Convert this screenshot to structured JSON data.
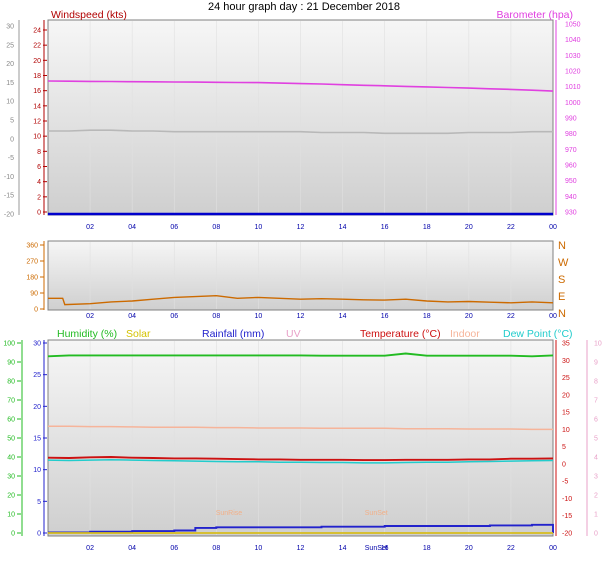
{
  "page_title": "24 hour graph day : 21 December 2018",
  "x_ticks": [
    "02",
    "04",
    "06",
    "08",
    "10",
    "12",
    "14",
    "16",
    "18",
    "20",
    "22",
    "00"
  ],
  "chart_data": [
    {
      "type": "line",
      "panel": "wind-pressure",
      "x": [
        0,
        1,
        2,
        3,
        4,
        5,
        6,
        7,
        8,
        9,
        10,
        11,
        12,
        13,
        14,
        15,
        16,
        17,
        18,
        19,
        20,
        21,
        22,
        23,
        24
      ],
      "left_axis": {
        "label": "Windspeed (kts)",
        "ticks": [
          "24",
          "22",
          "20",
          "18",
          "16",
          "14",
          "12",
          "10",
          "8",
          "6",
          "4",
          "2",
          "0"
        ],
        "range": [
          0,
          25
        ]
      },
      "right_axis": {
        "label": "Barometer (hpa)",
        "ticks": [
          "1050",
          "1040",
          "1030",
          "1020",
          "1010",
          "1000",
          "990",
          "980",
          "970",
          "960",
          "950",
          "940",
          "930"
        ],
        "range": [
          928,
          1051
        ]
      },
      "outer_left_ticks": [
        "30",
        "25",
        "20",
        "15",
        "10",
        "5",
        "0",
        "-5",
        "-10",
        "-15",
        "-20"
      ],
      "series": [
        {
          "name": "Barometer (hpa)",
          "axis": "right",
          "color": "#e040e0",
          "values": [
            1012.3,
            1012.2,
            1012.1,
            1012.0,
            1011.9,
            1011.8,
            1011.7,
            1011.6,
            1011.5,
            1011.4,
            1011.3,
            1011.0,
            1010.7,
            1010.4,
            1010.0,
            1009.6,
            1009.3,
            1008.9,
            1008.6,
            1008.2,
            1007.8,
            1007.4,
            1007.0,
            1006.5,
            1005.9
          ]
        },
        {
          "axis": "left",
          "color": "#b8b8b8",
          "values": [
            10.7,
            10.7,
            10.8,
            10.8,
            10.7,
            10.7,
            10.6,
            10.6,
            10.6,
            10.6,
            10.6,
            10.6,
            10.6,
            10.5,
            10.5,
            10.5,
            10.4,
            10.4,
            10.4,
            10.4,
            10.5,
            10.5,
            10.5,
            10.6,
            10.6
          ]
        },
        {
          "axis": "left",
          "color": "#0000cc",
          "values": [
            0,
            0,
            0,
            0,
            0,
            0,
            0,
            0,
            0,
            0,
            0,
            0,
            0,
            0,
            0,
            0,
            0,
            0,
            0,
            0,
            0,
            0,
            0,
            0,
            0
          ]
        }
      ]
    },
    {
      "type": "line",
      "panel": "wind-direction",
      "x": [
        0,
        0.7,
        0.8,
        2,
        3,
        4,
        5,
        6,
        7,
        8,
        9,
        10,
        11,
        12,
        13,
        14,
        15,
        16,
        17,
        18,
        19,
        20,
        21,
        22,
        23,
        24
      ],
      "left_axis": {
        "ticks": [
          "360",
          "270",
          "180",
          "90",
          "0"
        ],
        "range": [
          0,
          360
        ]
      },
      "right_axis": {
        "ticks": [
          "N",
          "W",
          "S",
          "E",
          "N"
        ]
      },
      "series": [
        {
          "color": "#cc6a00",
          "values": [
            60,
            60,
            25,
            30,
            40,
            45,
            55,
            65,
            70,
            75,
            60,
            65,
            60,
            55,
            58,
            55,
            52,
            50,
            55,
            45,
            40,
            42,
            38,
            35,
            40,
            35
          ]
        }
      ]
    },
    {
      "type": "line",
      "panel": "temp-humidity-rain",
      "x": [
        0,
        1,
        2,
        3,
        4,
        5,
        6,
        7,
        8,
        9,
        10,
        11,
        12,
        13,
        14,
        15,
        16,
        17,
        18,
        19,
        20,
        21,
        22,
        23,
        24
      ],
      "legend": [
        "Humidity (%)",
        "Solar",
        "Rainfall (mm)",
        "UV",
        "Temperature (°C)",
        "Indoor",
        "Dew Point (°C)"
      ],
      "left_axis": {
        "ticks": [
          "30",
          "25",
          "20",
          "15",
          "10",
          "5",
          "0"
        ],
        "range": [
          0,
          30
        ]
      },
      "outer_left_ticks": [
        "100",
        "90",
        "80",
        "70",
        "60",
        "50",
        "40",
        "30",
        "20",
        "10",
        "0"
      ],
      "right_axis": {
        "ticks": [
          "35",
          "30",
          "25",
          "20",
          "15",
          "10",
          "5",
          "0",
          "-5",
          "-10",
          "-15",
          "-20"
        ],
        "range": [
          -20,
          35
        ]
      },
      "outer_right_ticks": [
        "10",
        "9",
        "8",
        "7",
        "6",
        "5",
        "4",
        "3",
        "2",
        "1",
        "0"
      ],
      "annotations": [
        "SunRise",
        "SunSet",
        "SunSet"
      ],
      "series": [
        {
          "name": "Humidity (%)",
          "axis": "outer_left",
          "color": "#22bb22",
          "values": [
            93,
            93.5,
            93.5,
            93.5,
            93.5,
            93.5,
            93.5,
            93.5,
            93.5,
            93.5,
            93.5,
            93.5,
            93.5,
            93.3,
            93.3,
            93.3,
            93.3,
            94.5,
            93.3,
            93.3,
            93.3,
            93.3,
            93.3,
            93,
            93.5
          ]
        },
        {
          "name": "Indoor",
          "axis": "right",
          "color": "#f6b49a",
          "values": [
            10.9,
            10.9,
            10.8,
            10.8,
            10.7,
            10.6,
            10.6,
            10.6,
            10.5,
            10.5,
            10.4,
            10.4,
            10.4,
            10.3,
            10.3,
            10.3,
            10.3,
            10.2,
            10.2,
            10.2,
            10.1,
            10.1,
            10.1,
            10.0,
            10.0
          ]
        },
        {
          "name": "Temperature (°C)",
          "axis": "right",
          "color": "#cc1111",
          "values": [
            1.8,
            1.7,
            1.9,
            2.0,
            1.8,
            1.7,
            1.6,
            1.6,
            1.5,
            1.4,
            1.3,
            1.3,
            1.2,
            1.2,
            1.2,
            1.1,
            1.1,
            1.2,
            1.2,
            1.2,
            1.3,
            1.3,
            1.5,
            1.5,
            1.6
          ]
        },
        {
          "name": "Dew Point (°C)",
          "axis": "right",
          "color": "#22cccc",
          "values": [
            1.1,
            1.0,
            1.1,
            1.2,
            1.1,
            1.0,
            0.9,
            0.8,
            0.7,
            0.6,
            0.6,
            0.5,
            0.5,
            0.4,
            0.4,
            0.3,
            0.3,
            0.4,
            0.5,
            0.5,
            0.6,
            0.7,
            0.8,
            0.9,
            1.0
          ]
        },
        {
          "name": "Rainfall (mm)",
          "axis": "left",
          "color": "#2222cc",
          "values": [
            0.1,
            0.1,
            0.2,
            0.2,
            0.3,
            0.3,
            0.4,
            0.8,
            0.9,
            0.9,
            0.9,
            0.9,
            0.9,
            1.0,
            1.0,
            1.0,
            1.1,
            1.1,
            1.1,
            1.1,
            1.1,
            1.2,
            1.2,
            1.3,
            0
          ]
        },
        {
          "name": "UV",
          "axis": "outer_right",
          "color": "#e8a0c8",
          "values": [
            0,
            0,
            0,
            0,
            0,
            0,
            0,
            0,
            0,
            0,
            0,
            0,
            0,
            0,
            0,
            0,
            0,
            0,
            0,
            0,
            0,
            0,
            0,
            0,
            0
          ]
        },
        {
          "name": "Solar",
          "axis": "left",
          "color": "#d4c200",
          "values": [
            0,
            0,
            0,
            0,
            0,
            0,
            0,
            0,
            0,
            0,
            0,
            0,
            0,
            0,
            0,
            0,
            0,
            0,
            0,
            0,
            0,
            0,
            0,
            0,
            0
          ]
        }
      ]
    }
  ],
  "colors": {
    "wind": "#b00000",
    "barometer": "#e040e0",
    "humidity": "#22bb22",
    "solar": "#d4c200",
    "rain": "#2222cc",
    "uv": "#e8a0c8",
    "temperature": "#cc1111",
    "indoor": "#f6b49a",
    "dewpoint": "#22cccc",
    "direction": "#cc6a00",
    "x_labels": "#0000aa"
  }
}
